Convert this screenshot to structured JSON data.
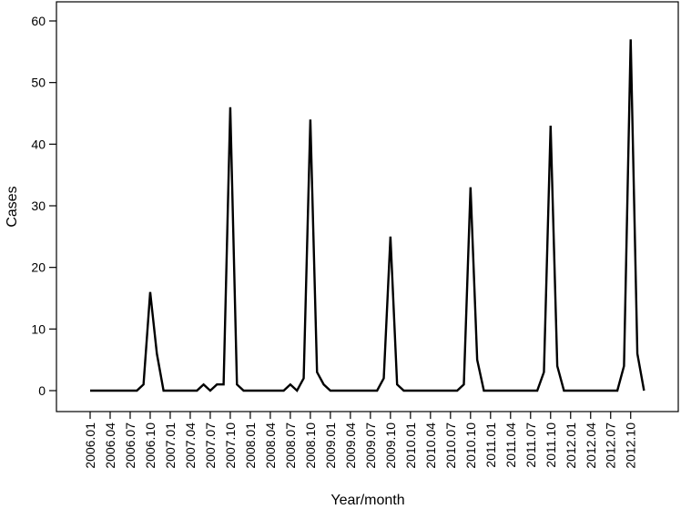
{
  "chart_data": {
    "type": "line",
    "xlabel": "Year/month",
    "ylabel": "Cases",
    "ylim": [
      0,
      60
    ],
    "yticks": [
      0,
      10,
      20,
      30,
      40,
      50,
      60
    ],
    "xticks": [
      "2006.01",
      "2006.04",
      "2006.07",
      "2006.10",
      "2007.01",
      "2007.04",
      "2007.07",
      "2007.10",
      "2008.01",
      "2008.04",
      "2008.07",
      "2008.10",
      "2009.01",
      "2009.04",
      "2009.07",
      "2009.10",
      "2010.01",
      "2010.04",
      "2010.07",
      "2010.10",
      "2011.01",
      "2011.04",
      "2011.07",
      "2011.10",
      "2012.01",
      "2012.04",
      "2012.07",
      "2012.10"
    ],
    "grid": false,
    "legend": "none",
    "line_color": "#000000",
    "x": [
      "2006.01",
      "2006.02",
      "2006.03",
      "2006.04",
      "2006.05",
      "2006.06",
      "2006.07",
      "2006.08",
      "2006.09",
      "2006.10",
      "2006.11",
      "2006.12",
      "2007.01",
      "2007.02",
      "2007.03",
      "2007.04",
      "2007.05",
      "2007.06",
      "2007.07",
      "2007.08",
      "2007.09",
      "2007.10",
      "2007.11",
      "2007.12",
      "2008.01",
      "2008.02",
      "2008.03",
      "2008.04",
      "2008.05",
      "2008.06",
      "2008.07",
      "2008.08",
      "2008.09",
      "2008.10",
      "2008.11",
      "2008.12",
      "2009.01",
      "2009.02",
      "2009.03",
      "2009.04",
      "2009.05",
      "2009.06",
      "2009.07",
      "2009.08",
      "2009.09",
      "2009.10",
      "2009.11",
      "2009.12",
      "2010.01",
      "2010.02",
      "2010.03",
      "2010.04",
      "2010.05",
      "2010.06",
      "2010.07",
      "2010.08",
      "2010.09",
      "2010.10",
      "2010.11",
      "2010.12",
      "2011.01",
      "2011.02",
      "2011.03",
      "2011.04",
      "2011.05",
      "2011.06",
      "2011.07",
      "2011.08",
      "2011.09",
      "2011.10",
      "2011.11",
      "2011.12",
      "2012.01",
      "2012.02",
      "2012.03",
      "2012.04",
      "2012.05",
      "2012.06",
      "2012.07",
      "2012.08",
      "2012.09",
      "2012.10",
      "2012.11",
      "2012.12"
    ],
    "series": [
      {
        "values": [
          0,
          0,
          0,
          0,
          0,
          0,
          0,
          0,
          1,
          16,
          6,
          0,
          0,
          0,
          0,
          0,
          0,
          1,
          0,
          1,
          1,
          46,
          1,
          0,
          0,
          0,
          0,
          0,
          0,
          0,
          1,
          0,
          2,
          44,
          3,
          1,
          0,
          0,
          0,
          0,
          0,
          0,
          0,
          0,
          2,
          25,
          1,
          0,
          0,
          0,
          0,
          0,
          0,
          0,
          0,
          0,
          1,
          33,
          5,
          0,
          0,
          0,
          0,
          0,
          0,
          0,
          0,
          0,
          3,
          43,
          4,
          0,
          0,
          0,
          0,
          0,
          0,
          0,
          0,
          0,
          4,
          57,
          6,
          0
        ]
      }
    ]
  }
}
